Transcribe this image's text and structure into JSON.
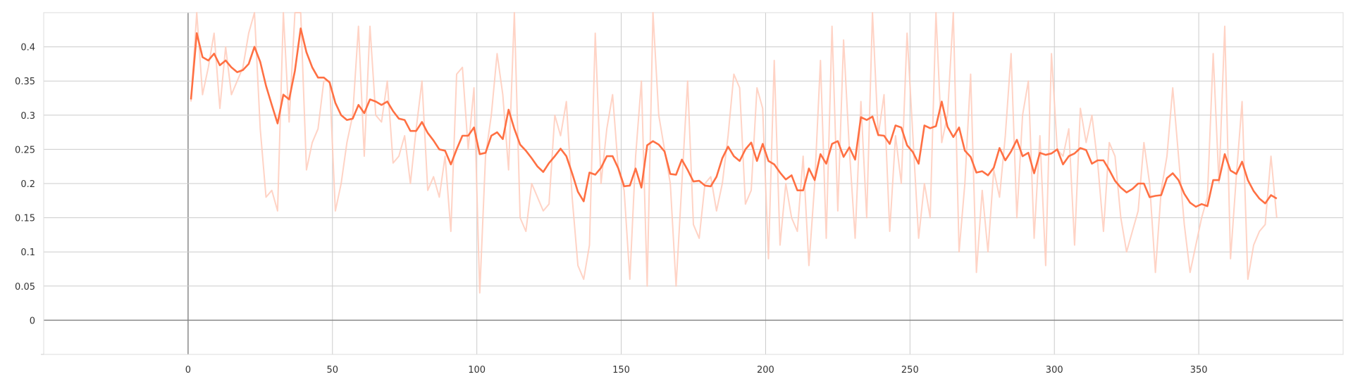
{
  "chart_data": {
    "type": "line",
    "title": "",
    "xlabel": "",
    "ylabel": "",
    "xlim": [
      -50,
      400
    ],
    "ylim": [
      -0.05,
      0.45
    ],
    "x_ticks": [
      0,
      50,
      100,
      150,
      200,
      250,
      300,
      350
    ],
    "y_ticks": [
      0,
      0.05,
      0.1,
      0.15,
      0.2,
      0.25,
      0.3,
      0.35,
      0.4
    ],
    "x_tick_labels": [
      "0",
      "50",
      "100",
      "150",
      "200",
      "250",
      "300",
      "350"
    ],
    "y_tick_labels": [
      "0",
      "0.05",
      "0.1",
      "0.15",
      "0.2",
      "0.25",
      "0.3",
      "0.35",
      "0.4"
    ],
    "grid": true,
    "legend": "none",
    "colors": {
      "smoothed": "#ff7043",
      "raw": "#ffcbbb",
      "grid": "#cccccc",
      "axis": "#888888"
    },
    "series": [
      {
        "role": "raw",
        "x": [
          1,
          3,
          5,
          7,
          9,
          11,
          13,
          15,
          17,
          19,
          21,
          23,
          25,
          27,
          29,
          31,
          33,
          35,
          37,
          39,
          41,
          43,
          45,
          47,
          49,
          51,
          53,
          55,
          57,
          59,
          61,
          63,
          65,
          67,
          69,
          71,
          73,
          75,
          77,
          79,
          81,
          83,
          85,
          87,
          89,
          91,
          93,
          95,
          97,
          99,
          101,
          103,
          105,
          107,
          109,
          111,
          113,
          115,
          117,
          119,
          121,
          123,
          125,
          127,
          129,
          131,
          133,
          135,
          137,
          139,
          141,
          143,
          145,
          147,
          149,
          151,
          153,
          155,
          157,
          159,
          161,
          163,
          165,
          167,
          169,
          171,
          173,
          175,
          177,
          179,
          181,
          183,
          185,
          187,
          189,
          191,
          193,
          195,
          197,
          199,
          201,
          203,
          205,
          207,
          209,
          211,
          213,
          215,
          217,
          219,
          221,
          223,
          225,
          227,
          229,
          231,
          233,
          235,
          237,
          239,
          241,
          243,
          245,
          247,
          249,
          251,
          253,
          255,
          257,
          259,
          261,
          263,
          265,
          267,
          269,
          271,
          273,
          275,
          277,
          279,
          281,
          283,
          285,
          287,
          289,
          291,
          293,
          295,
          297,
          299,
          301,
          303,
          305,
          307,
          309,
          311,
          313,
          315,
          317,
          319,
          321,
          323,
          325,
          327,
          329,
          331,
          333,
          335,
          337,
          339,
          341,
          343,
          345,
          347,
          349,
          351,
          353,
          355,
          357,
          359,
          361,
          363,
          365,
          367,
          369,
          371,
          373,
          375,
          377
        ],
        "y": [
          0.32,
          0.5,
          0.33,
          0.37,
          0.42,
          0.31,
          0.4,
          0.33,
          0.35,
          0.37,
          0.42,
          0.5,
          0.28,
          0.18,
          0.19,
          0.16,
          0.5,
          0.29,
          0.5,
          0.5,
          0.22,
          0.26,
          0.28,
          0.35,
          0.35,
          0.16,
          0.2,
          0.26,
          0.3,
          0.43,
          0.24,
          0.43,
          0.3,
          0.29,
          0.35,
          0.23,
          0.24,
          0.27,
          0.2,
          0.28,
          0.35,
          0.19,
          0.21,
          0.18,
          0.24,
          0.13,
          0.36,
          0.37,
          0.25,
          0.34,
          0.04,
          0.24,
          0.3,
          0.39,
          0.33,
          0.22,
          0.5,
          0.15,
          0.13,
          0.2,
          0.18,
          0.16,
          0.17,
          0.3,
          0.27,
          0.32,
          0.18,
          0.08,
          0.06,
          0.11,
          0.42,
          0.2,
          0.28,
          0.33,
          0.22,
          0.19,
          0.06,
          0.24,
          0.35,
          0.05,
          0.5,
          0.3,
          0.25,
          0.2,
          0.05,
          0.2,
          0.35,
          0.14,
          0.12,
          0.2,
          0.21,
          0.16,
          0.2,
          0.27,
          0.36,
          0.34,
          0.17,
          0.19,
          0.34,
          0.31,
          0.09,
          0.38,
          0.11,
          0.2,
          0.15,
          0.13,
          0.24,
          0.08,
          0.2,
          0.38,
          0.12,
          0.43,
          0.16,
          0.41,
          0.25,
          0.12,
          0.32,
          0.15,
          0.5,
          0.27,
          0.33,
          0.13,
          0.27,
          0.2,
          0.42,
          0.27,
          0.12,
          0.2,
          0.15,
          0.5,
          0.26,
          0.3,
          0.5,
          0.1,
          0.2,
          0.36,
          0.07,
          0.19,
          0.1,
          0.22,
          0.18,
          0.27,
          0.39,
          0.15,
          0.3,
          0.35,
          0.12,
          0.27,
          0.08,
          0.39,
          0.25,
          0.24,
          0.28,
          0.11,
          0.31,
          0.26,
          0.3,
          0.23,
          0.13,
          0.26,
          0.24,
          0.15,
          0.1,
          0.13,
          0.16,
          0.26,
          0.2,
          0.07,
          0.19,
          0.24,
          0.34,
          0.24,
          0.14,
          0.07,
          0.11,
          0.15,
          0.18,
          0.39,
          0.2,
          0.43,
          0.09,
          0.21,
          0.32,
          0.06,
          0.11,
          0.13,
          0.14,
          0.24,
          0.15
        ]
      },
      {
        "role": "smoothed",
        "x": [
          1,
          3,
          5,
          7,
          9,
          11,
          13,
          15,
          17,
          19,
          21,
          23,
          25,
          27,
          29,
          31,
          33,
          35,
          37,
          39,
          41,
          43,
          45,
          47,
          49,
          51,
          53,
          55,
          57,
          59,
          61,
          63,
          65,
          67,
          69,
          71,
          73,
          75,
          77,
          79,
          81,
          83,
          85,
          87,
          89,
          91,
          93,
          95,
          97,
          99,
          101,
          103,
          105,
          107,
          109,
          111,
          113,
          115,
          117,
          119,
          121,
          123,
          125,
          127,
          129,
          131,
          133,
          135,
          137,
          139,
          141,
          143,
          145,
          147,
          149,
          151,
          153,
          155,
          157,
          159,
          161,
          163,
          165,
          167,
          169,
          171,
          173,
          175,
          177,
          179,
          181,
          183,
          185,
          187,
          189,
          191,
          193,
          195,
          197,
          199,
          201,
          203,
          205,
          207,
          209,
          211,
          213,
          215,
          217,
          219,
          221,
          223,
          225,
          227,
          229,
          231,
          233,
          235,
          237,
          239,
          241,
          243,
          245,
          247,
          249,
          251,
          253,
          255,
          257,
          259,
          261,
          263,
          265,
          267,
          269,
          271,
          273,
          275,
          277,
          279,
          281,
          283,
          285,
          287,
          289,
          291,
          293,
          295,
          297,
          299,
          301,
          303,
          305,
          307,
          309,
          311,
          313,
          315,
          317,
          319,
          321,
          323,
          325,
          327,
          329,
          331,
          333,
          335,
          337,
          339,
          341,
          343,
          345,
          347,
          349,
          351,
          353,
          355,
          357,
          359,
          361,
          363,
          365,
          367,
          369,
          371,
          373,
          375,
          377
        ],
        "y": [
          0.323,
          0.42,
          0.385,
          0.38,
          0.39,
          0.373,
          0.38,
          0.37,
          0.363,
          0.366,
          0.375,
          0.4,
          0.378,
          0.343,
          0.315,
          0.288,
          0.33,
          0.323,
          0.365,
          0.427,
          0.392,
          0.37,
          0.355,
          0.355,
          0.348,
          0.318,
          0.3,
          0.293,
          0.295,
          0.315,
          0.303,
          0.323,
          0.32,
          0.315,
          0.32,
          0.306,
          0.295,
          0.293,
          0.277,
          0.277,
          0.29,
          0.274,
          0.263,
          0.25,
          0.248,
          0.228,
          0.25,
          0.27,
          0.27,
          0.282,
          0.243,
          0.245,
          0.27,
          0.275,
          0.265,
          0.308,
          0.28,
          0.257,
          0.248,
          0.237,
          0.225,
          0.217,
          0.23,
          0.24,
          0.251,
          0.24,
          0.215,
          0.188,
          0.174,
          0.216,
          0.213,
          0.223,
          0.24,
          0.24,
          0.222,
          0.196,
          0.197,
          0.222,
          0.194,
          0.256,
          0.262,
          0.257,
          0.247,
          0.214,
          0.213,
          0.235,
          0.22,
          0.203,
          0.204,
          0.197,
          0.196,
          0.21,
          0.237,
          0.254,
          0.24,
          0.233,
          0.25,
          0.26,
          0.233,
          0.258,
          0.233,
          0.228,
          0.216,
          0.206,
          0.212,
          0.19,
          0.19,
          0.222,
          0.205,
          0.243,
          0.229,
          0.258,
          0.262,
          0.239,
          0.253,
          0.235,
          0.297,
          0.293,
          0.298,
          0.271,
          0.27,
          0.258,
          0.285,
          0.282,
          0.256,
          0.246,
          0.229,
          0.285,
          0.281,
          0.284,
          0.32,
          0.283,
          0.268,
          0.282,
          0.248,
          0.239,
          0.216,
          0.218,
          0.212,
          0.223,
          0.252,
          0.234,
          0.247,
          0.264,
          0.24,
          0.245,
          0.215,
          0.245,
          0.242,
          0.244,
          0.25,
          0.228,
          0.24,
          0.244,
          0.252,
          0.249,
          0.229,
          0.234,
          0.234,
          0.22,
          0.204,
          0.194,
          0.187,
          0.192,
          0.2,
          0.2,
          0.18,
          0.182,
          0.183,
          0.208,
          0.215,
          0.205,
          0.185,
          0.172,
          0.166,
          0.17,
          0.167,
          0.205,
          0.205,
          0.243,
          0.219,
          0.214,
          0.232,
          0.205,
          0.189,
          0.178,
          0.171,
          0.183,
          0.178
        ]
      }
    ]
  }
}
